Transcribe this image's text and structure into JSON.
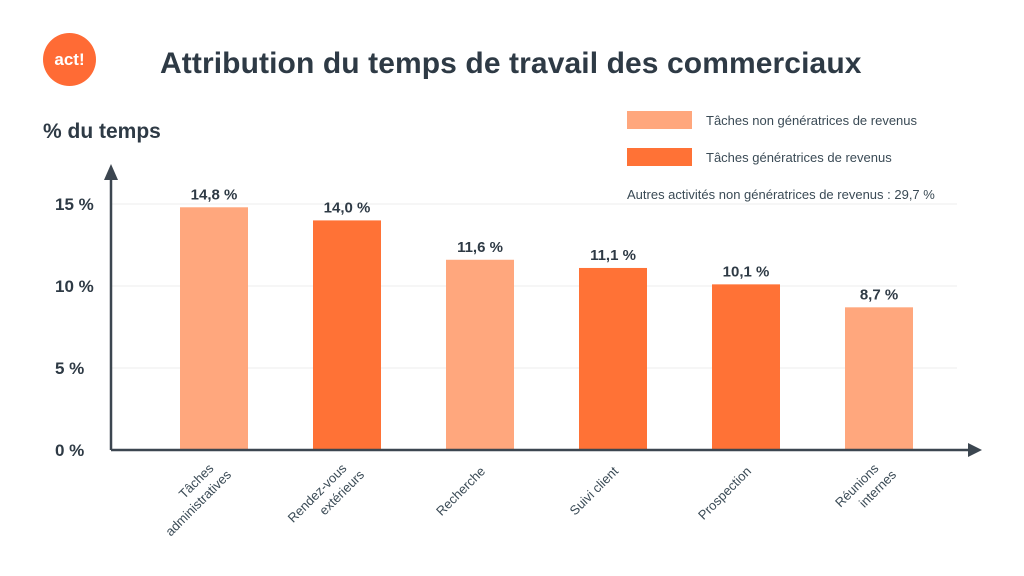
{
  "logo": {
    "text": "act!",
    "color": "#FF6B35"
  },
  "chart_data": {
    "type": "bar",
    "title": "Attribution du temps de travail des commerciaux",
    "ylabel": "% du temps",
    "xlabel": "",
    "ylim": [
      0,
      16.5
    ],
    "yticks": [
      {
        "value": 0,
        "label": "0 %"
      },
      {
        "value": 5,
        "label": "5 %"
      },
      {
        "value": 10,
        "label": "10 %"
      },
      {
        "value": 15,
        "label": "15 %"
      }
    ],
    "grid": true,
    "legend_position": "top-right",
    "categories": [
      [
        "Tâches",
        "administratives"
      ],
      [
        "Rendez-vous",
        "extérieurs"
      ],
      [
        "Recherche"
      ],
      [
        "Suivi client"
      ],
      [
        "Prospection"
      ],
      [
        "Réunions",
        "internes"
      ]
    ],
    "values": [
      14.8,
      14.0,
      11.6,
      11.1,
      10.1,
      8.7
    ],
    "value_labels": [
      "14,8 %",
      "14,0 %",
      "11,6 %",
      "11,1 %",
      "10,1 %",
      "8,7 %"
    ],
    "bar_groups": [
      "non",
      "gen",
      "non",
      "gen",
      "gen",
      "non"
    ],
    "series": [
      {
        "key": "non",
        "name": "Tâches non génératrices de revenus",
        "color": "#FFA77D"
      },
      {
        "key": "gen",
        "name": "Tâches génératrices de revenus",
        "color": "#FF7236"
      }
    ],
    "annotation": "Autres activités non génératrices de revenus : 29,7 %"
  },
  "colors": {
    "axis": "#3C4650",
    "grid": "#EDEDED",
    "text": "#2E3A45"
  }
}
